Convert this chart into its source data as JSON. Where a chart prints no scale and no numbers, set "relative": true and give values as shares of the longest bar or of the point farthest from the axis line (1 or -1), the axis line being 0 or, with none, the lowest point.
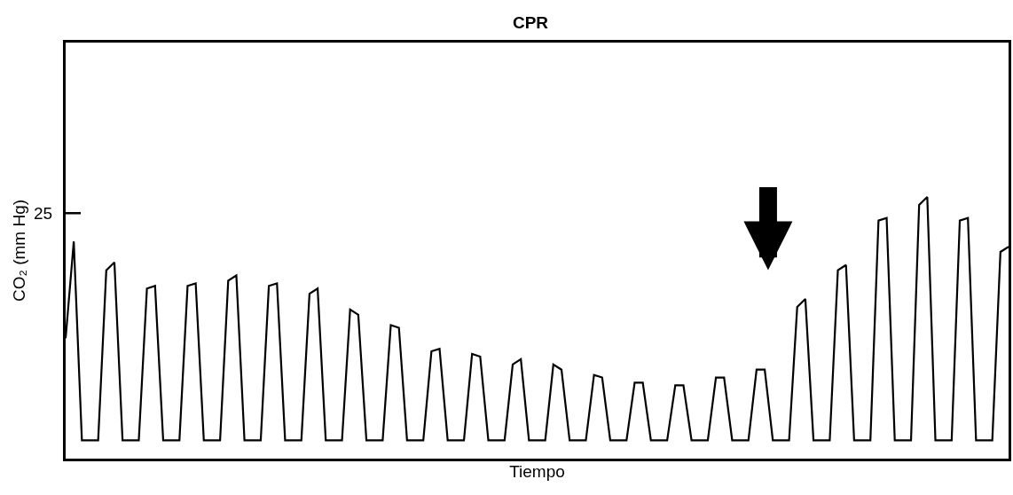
{
  "chart_data": {
    "type": "line",
    "title": "CPR",
    "xlabel": "Tiempo",
    "ylabel": "CO₂ (mm Hg)",
    "relative": true,
    "tick_labels": false,
    "marker": "none",
    "line_style": "solid",
    "annotations": [
      "25"
    ],
    "categories": [
      null,
      null,
      null,
      null,
      null,
      null,
      null,
      null,
      null,
      null,
      null,
      null,
      null,
      null,
      null,
      null,
      null,
      null,
      null,
      null,
      null,
      null,
      null,
      null,
      null,
      null,
      null,
      null,
      null,
      null,
      null,
      null,
      null,
      null,
      null,
      null,
      null,
      null,
      null,
      null,
      null,
      null,
      null,
      null,
      null,
      null,
      null,
      null,
      null,
      null,
      null,
      null,
      null,
      null,
      null,
      null,
      null,
      null,
      null,
      null,
      null,
      null,
      null,
      null,
      null,
      null,
      null,
      null,
      null,
      null,
      null,
      null,
      null,
      null,
      null,
      null,
      null,
      null,
      null,
      null,
      null,
      null,
      null,
      null,
      null,
      null,
      null,
      null,
      null,
      null,
      null,
      null,
      null,
      null,
      null,
      null,
      null,
      null,
      null,
      null,
      null,
      null,
      null,
      null,
      null,
      null,
      null,
      null,
      null,
      null,
      null,
      null,
      null,
      null,
      null,
      null,
      null
    ],
    "series": [
      {
        "color": "#000000",
        "values": [
          0.46,
          0.83,
          0.07,
          0.07,
          0.07,
          0.72,
          0.75,
          0.07,
          0.07,
          0.07,
          0.65,
          0.66,
          0.07,
          0.07,
          0.07,
          0.66,
          0.67,
          0.07,
          0.07,
          0.07,
          0.68,
          0.7,
          0.07,
          0.07,
          0.07,
          0.66,
          0.67,
          0.07,
          0.07,
          0.07,
          0.63,
          0.65,
          0.07,
          0.07,
          0.07,
          0.57,
          0.55,
          0.07,
          0.07,
          0.07,
          0.51,
          0.5,
          0.07,
          0.07,
          0.07,
          0.41,
          0.42,
          0.07,
          0.07,
          0.07,
          0.4,
          0.39,
          0.07,
          0.07,
          0.07,
          0.36,
          0.38,
          0.07,
          0.07,
          0.07,
          0.36,
          0.34,
          0.07,
          0.07,
          0.07,
          0.32,
          0.31,
          0.07,
          0.07,
          0.07,
          0.29,
          0.29,
          0.07,
          0.07,
          0.07,
          0.28,
          0.28,
          0.07,
          0.07,
          0.07,
          0.31,
          0.31,
          0.07,
          0.07,
          0.07,
          0.34,
          0.34,
          0.07,
          0.07,
          0.07,
          0.58,
          0.61,
          0.07,
          0.07,
          0.07,
          0.72,
          0.74,
          0.07,
          0.07,
          0.07,
          0.91,
          0.92,
          0.07,
          0.07,
          0.07,
          0.97,
          1.0,
          0.07,
          0.07,
          0.07,
          0.91,
          0.92,
          0.07,
          0.07,
          0.07,
          0.79,
          0.81
        ]
      }
    ]
  }
}
